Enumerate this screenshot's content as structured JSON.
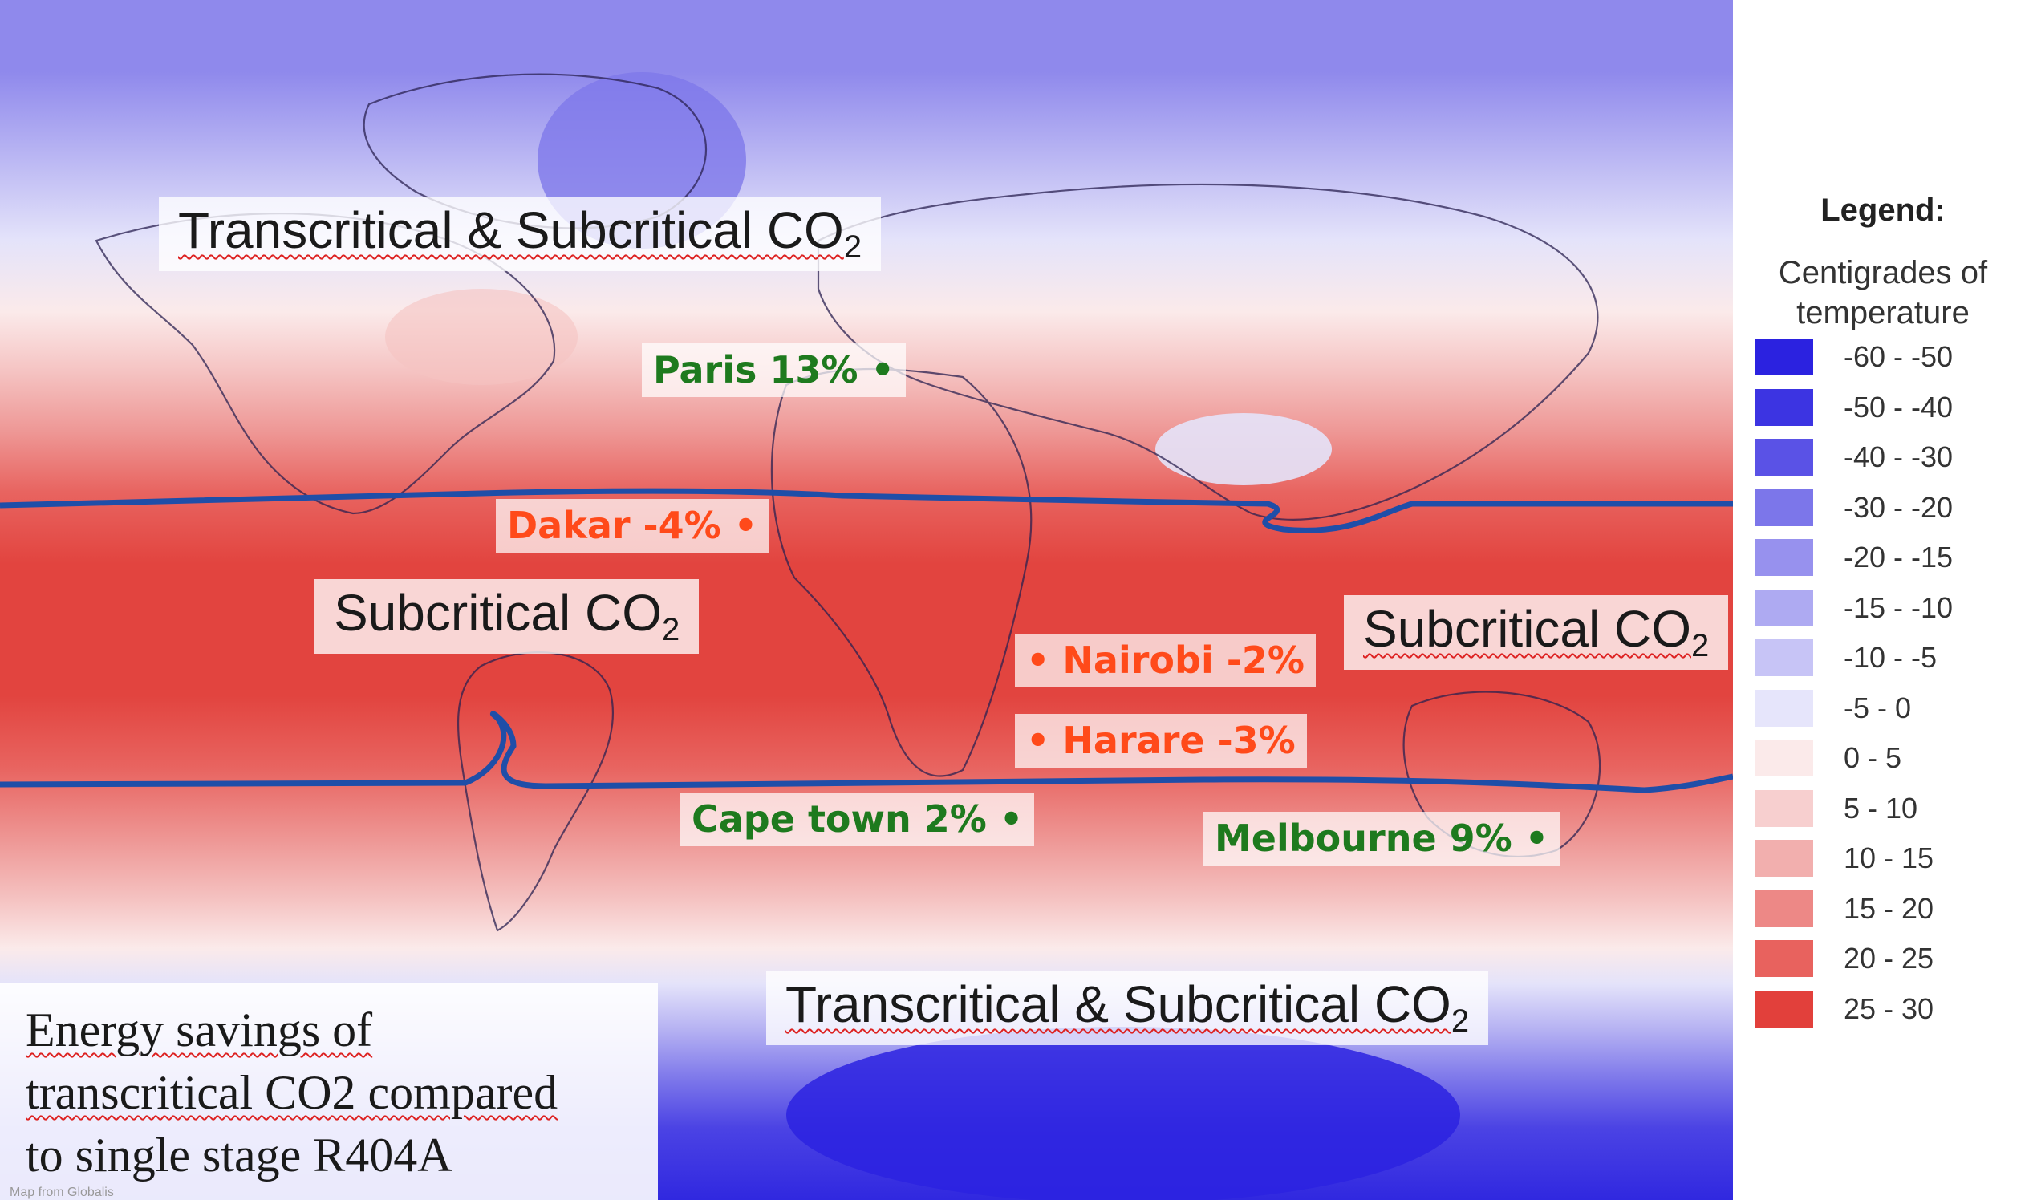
{
  "zone_labels": {
    "north": "Transcritical & Subcritical CO",
    "north_sub": "2",
    "tropics_left": "Subcritical CO",
    "tropics_left_sub": "2",
    "tropics_right": "Subcritical CO",
    "tropics_right_sub": "2",
    "south": "Transcritical & Subcritical CO",
    "south_sub": "2"
  },
  "cities": [
    {
      "name": "Paris 13%",
      "type": "positive"
    },
    {
      "name": "Dakar -4%",
      "type": "negative"
    },
    {
      "name": "Nairobi -2%",
      "type": "negative"
    },
    {
      "name": "Harare -3%",
      "type": "negative"
    },
    {
      "name": "Cape town 2%",
      "type": "positive"
    },
    {
      "name": "Melbourne 9%",
      "type": "positive"
    }
  ],
  "note": {
    "line1": "Energy savings of",
    "line2": "transcritical CO2 compared",
    "line3": "to single stage R404A"
  },
  "legend": {
    "title": "Legend:",
    "subtitle_line1": "Centigrades of",
    "subtitle_line2": "temperature",
    "items": [
      {
        "label": "-60 - -50",
        "color": "#2b22e0"
      },
      {
        "label": "-50 - -40",
        "color": "#3c34e2"
      },
      {
        "label": "-40 - -30",
        "color": "#5a52e6"
      },
      {
        "label": "-30 - -20",
        "color": "#7c76ea"
      },
      {
        "label": "-20 - -15",
        "color": "#9791ee"
      },
      {
        "label": "-15 - -10",
        "color": "#aeaaf2"
      },
      {
        "label": "-10 - -5",
        "color": "#c7c4f6"
      },
      {
        "label": "-5 - 0",
        "color": "#e6e5fb"
      },
      {
        "label": "0 - 5",
        "color": "#fbeaea"
      },
      {
        "label": "5 - 10",
        "color": "#f7cfcf"
      },
      {
        "label": "10 - 15",
        "color": "#f2afae"
      },
      {
        "label": "15 - 20",
        "color": "#ed8886"
      },
      {
        "label": "20 - 25",
        "color": "#e8625e"
      },
      {
        "label": "25 - 30",
        "color": "#e2403b"
      }
    ]
  },
  "colors": {
    "positive_text": "#1e7a1e",
    "negative_text": "#ff4a1a",
    "boundary_line": "#1f4ea8"
  },
  "credit": "Map from Globalis"
}
